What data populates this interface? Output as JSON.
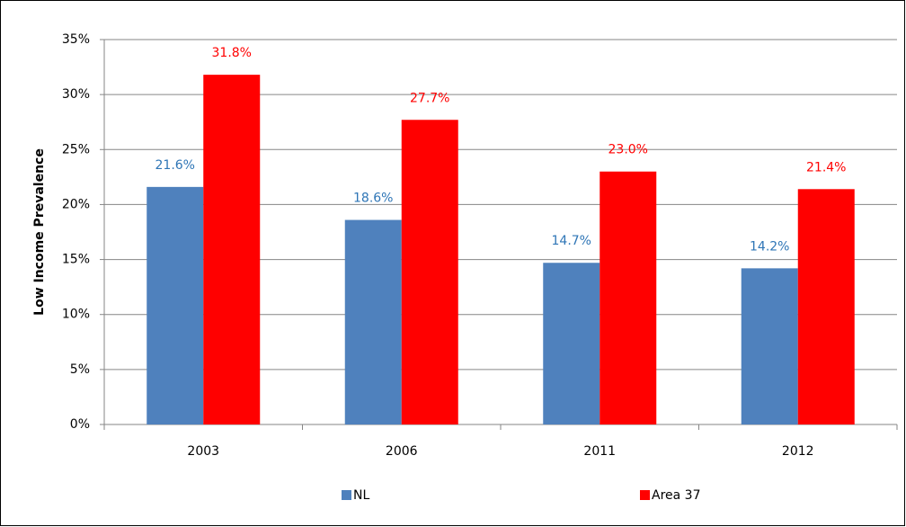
{
  "chart_data": {
    "type": "bar",
    "y_label": "Low Income Prevalence",
    "categories": [
      "2003",
      "2006",
      "2011",
      "2012"
    ],
    "series": [
      {
        "name": "NL",
        "color": "#4f81bd",
        "label_color": "#2e75b6",
        "values": [
          21.6,
          18.6,
          14.7,
          14.2
        ],
        "value_labels": [
          "21.6%",
          "18.6%",
          "14.7%",
          "14.2%"
        ]
      },
      {
        "name": "Area 37",
        "color": "#ff0000",
        "label_color": "#ff0000",
        "values": [
          31.8,
          27.7,
          23.0,
          21.4
        ],
        "value_labels": [
          "31.8%",
          "27.7%",
          "23.0%",
          "21.4%"
        ]
      }
    ],
    "ylim": [
      0,
      35
    ],
    "yticks": [
      {
        "value": 0,
        "label": "0%"
      },
      {
        "value": 5,
        "label": "5%"
      },
      {
        "value": 10,
        "label": "10%"
      },
      {
        "value": 15,
        "label": "15%"
      },
      {
        "value": 20,
        "label": "20%"
      },
      {
        "value": 25,
        "label": "25%"
      },
      {
        "value": 30,
        "label": "30%"
      },
      {
        "value": 35,
        "label": "35%"
      }
    ],
    "grid": true,
    "legend": "bottom"
  }
}
